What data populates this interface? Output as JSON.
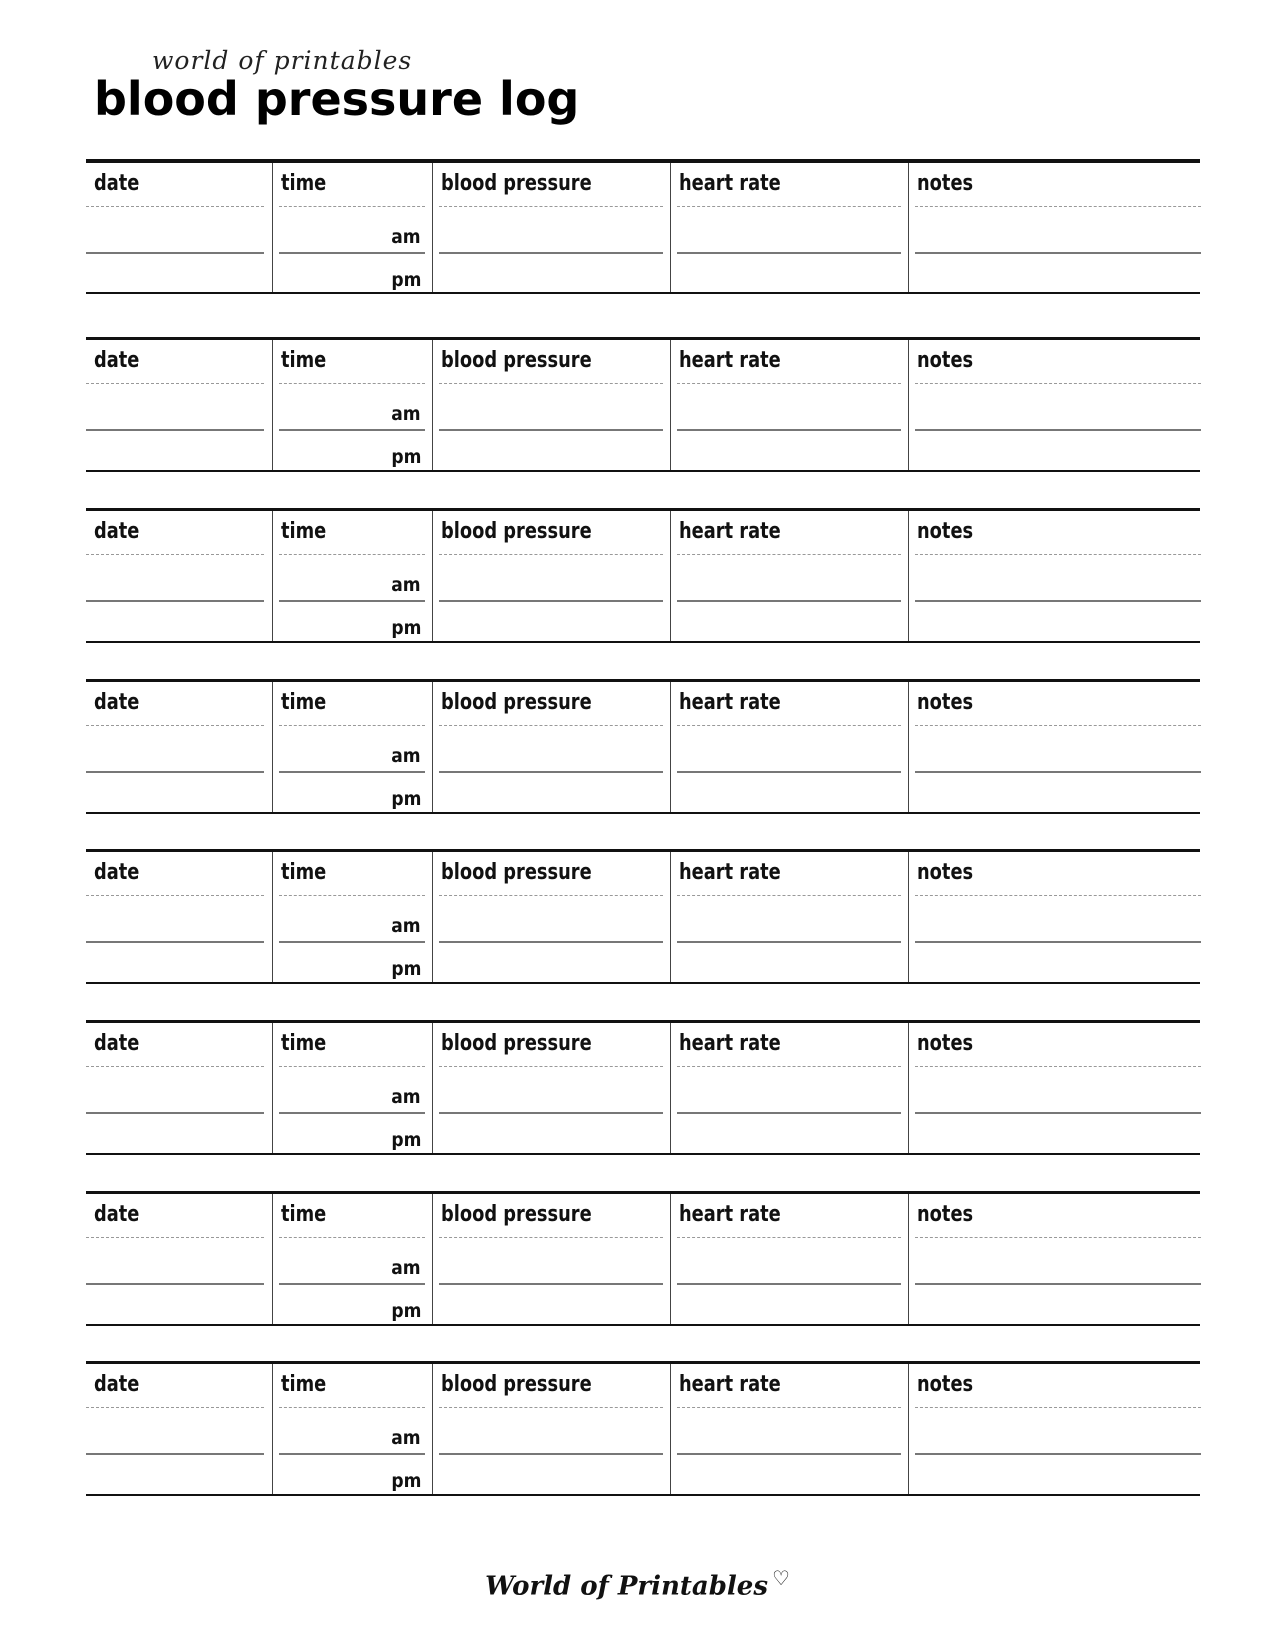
{
  "header": {
    "brand": "world of printables",
    "title": "blood pressure log"
  },
  "columns": [
    "date",
    "time",
    "blood pressure",
    "heart rate",
    "notes"
  ],
  "time_labels": {
    "am": "am",
    "pm": "pm"
  },
  "entries_count": 8,
  "footer": {
    "brand": "World of Printables",
    "icon": "heart-icon"
  }
}
